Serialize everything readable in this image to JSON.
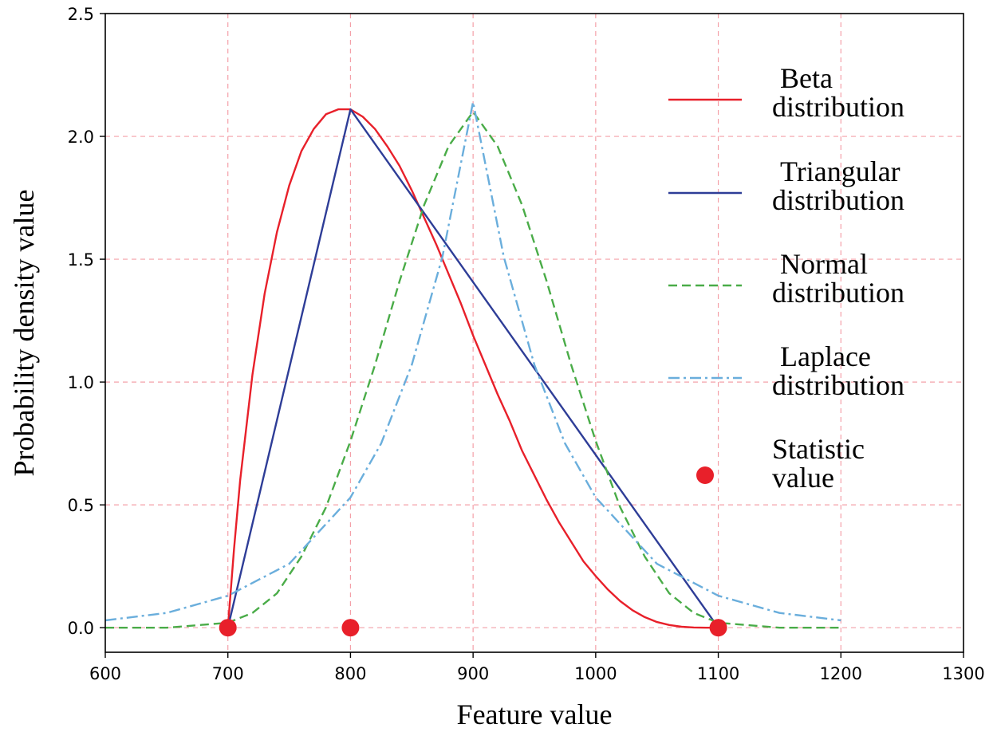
{
  "chart_data": {
    "type": "line",
    "xlabel": "Feature value",
    "ylabel": "Probability density value",
    "xlim": [
      600,
      1300
    ],
    "ylim": [
      -0.1,
      2.5
    ],
    "x_ticks": [
      600,
      700,
      800,
      900,
      1000,
      1100,
      1200,
      1300
    ],
    "x_tick_labels": [
      "600",
      "700",
      "800",
      "900",
      "1000",
      "1100",
      "1200",
      "1300"
    ],
    "y_ticks": [
      0.0,
      0.5,
      1.0,
      1.5,
      2.0,
      2.5
    ],
    "y_tick_labels": [
      "0.0",
      "0.5",
      "1.0",
      "1.5",
      "2.0",
      "2.5"
    ],
    "grid": true,
    "grid_color": "#f4a0a8",
    "legend_placement": "right",
    "series": [
      {
        "name": "Beta distribution",
        "legend_lines": [
          "Beta",
          "distribution"
        ],
        "style": "solid",
        "color": "#e8202a",
        "x": [
          700,
          705,
          710,
          720,
          730,
          740,
          750,
          760,
          770,
          780,
          790,
          800,
          810,
          820,
          830,
          840,
          850,
          860,
          870,
          880,
          890,
          900,
          910,
          920,
          930,
          940,
          950,
          960,
          970,
          980,
          990,
          1000,
          1010,
          1020,
          1030,
          1040,
          1050,
          1060,
          1070,
          1080,
          1090,
          1100
        ],
        "y": [
          0.0,
          0.32,
          0.6,
          1.03,
          1.36,
          1.61,
          1.8,
          1.94,
          2.03,
          2.09,
          2.11,
          2.11,
          2.08,
          2.03,
          1.96,
          1.88,
          1.78,
          1.67,
          1.56,
          1.44,
          1.32,
          1.19,
          1.07,
          0.95,
          0.84,
          0.72,
          0.62,
          0.52,
          0.43,
          0.35,
          0.27,
          0.21,
          0.155,
          0.108,
          0.071,
          0.043,
          0.023,
          0.011,
          0.004,
          0.001,
          0.0,
          0.0
        ]
      },
      {
        "name": "Triangular distribution",
        "legend_lines": [
          "Triangular",
          "distribution"
        ],
        "style": "solid",
        "color": "#2e3d97",
        "x": [
          700,
          800,
          1100
        ],
        "y": [
          0.0,
          2.11,
          0.0
        ]
      },
      {
        "name": "Normal distribution",
        "legend_lines": [
          "Normal",
          "distribution"
        ],
        "style": "dashed",
        "color": "#4aac48",
        "x": [
          600,
          650,
          700,
          720,
          740,
          760,
          780,
          800,
          820,
          840,
          860,
          880,
          900,
          920,
          940,
          960,
          980,
          1000,
          1020,
          1040,
          1060,
          1080,
          1100,
          1150,
          1200
        ],
        "y": [
          0.0,
          0.0,
          0.02,
          0.06,
          0.14,
          0.29,
          0.49,
          0.76,
          1.07,
          1.41,
          1.72,
          1.96,
          2.1,
          1.96,
          1.72,
          1.41,
          1.07,
          0.76,
          0.49,
          0.29,
          0.14,
          0.06,
          0.02,
          0.0,
          0.0
        ]
      },
      {
        "name": "Laplace distribution",
        "legend_lines": [
          "Laplace",
          "distribution"
        ],
        "style": "dashdot",
        "color": "#6aaedc",
        "x": [
          600,
          650,
          700,
          750,
          800,
          825,
          850,
          875,
          900,
          925,
          950,
          975,
          1000,
          1050,
          1100,
          1150,
          1200
        ],
        "y": [
          0.03,
          0.06,
          0.13,
          0.26,
          0.53,
          0.75,
          1.07,
          1.51,
          2.14,
          1.51,
          1.07,
          0.75,
          0.53,
          0.26,
          0.13,
          0.06,
          0.03
        ]
      }
    ],
    "points": {
      "name": "Statistic value",
      "legend_lines": [
        "Statistic",
        "value"
      ],
      "color": "#e8202a",
      "x": [
        700,
        800,
        1100
      ],
      "y": [
        0.0,
        0.0,
        0.0
      ]
    }
  }
}
